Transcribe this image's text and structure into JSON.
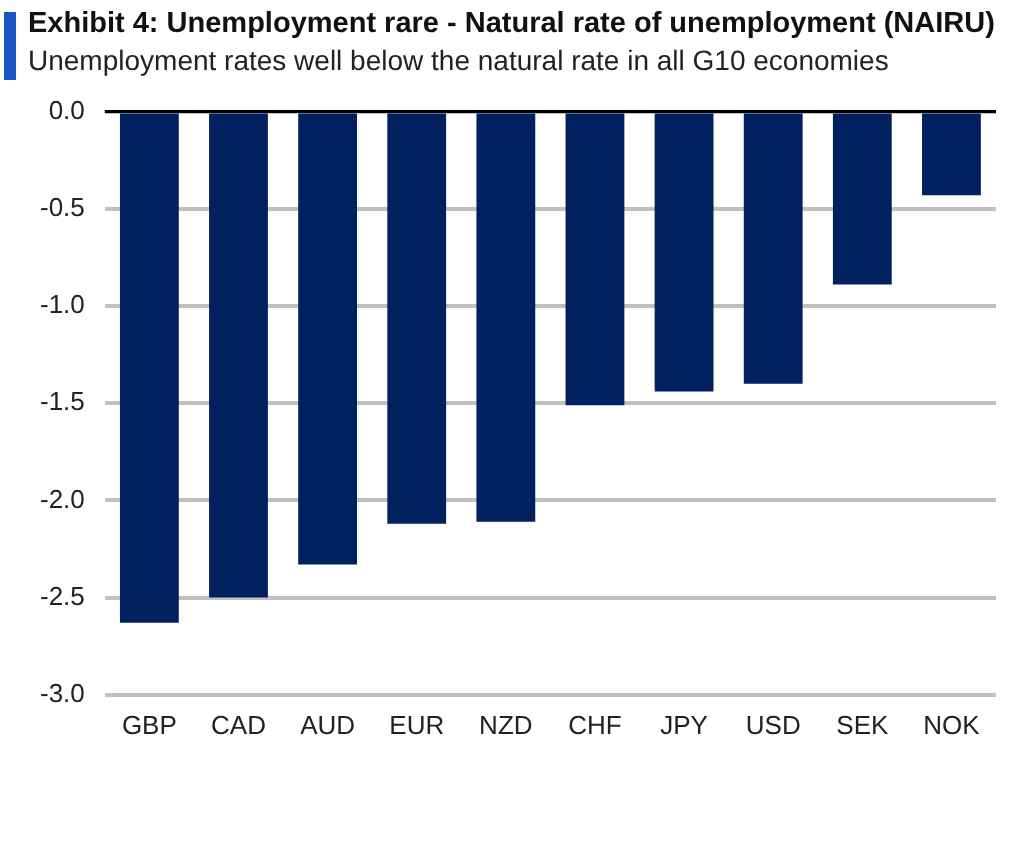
{
  "chart_data": {
    "type": "bar",
    "title": "Exhibit 4: Unemployment rare - Natural rate of unemployment (NAIRU)",
    "subtitle": "Unemployment rates well below the natural rate in all G10 economies",
    "categories": [
      "GBP",
      "CAD",
      "AUD",
      "EUR",
      "NZD",
      "CHF",
      "JPY",
      "USD",
      "SEK",
      "NOK"
    ],
    "values": [
      -2.63,
      -2.5,
      -2.33,
      -2.12,
      -2.11,
      -1.51,
      -1.44,
      -1.4,
      -0.89,
      -0.43
    ],
    "color": "#002060",
    "ylim": [
      -3,
      0
    ],
    "yticks": [
      {
        "value": -3,
        "label": "-3.0"
      },
      {
        "value": -2.5,
        "label": "-2.5"
      },
      {
        "value": -2,
        "label": "-2.0"
      },
      {
        "value": -1.5,
        "label": "-1.5"
      },
      {
        "value": -1,
        "label": "-1.0"
      },
      {
        "value": -0.5,
        "label": "-0.5"
      },
      {
        "value": 0,
        "label": "0.0"
      }
    ],
    "grid": "y"
  }
}
